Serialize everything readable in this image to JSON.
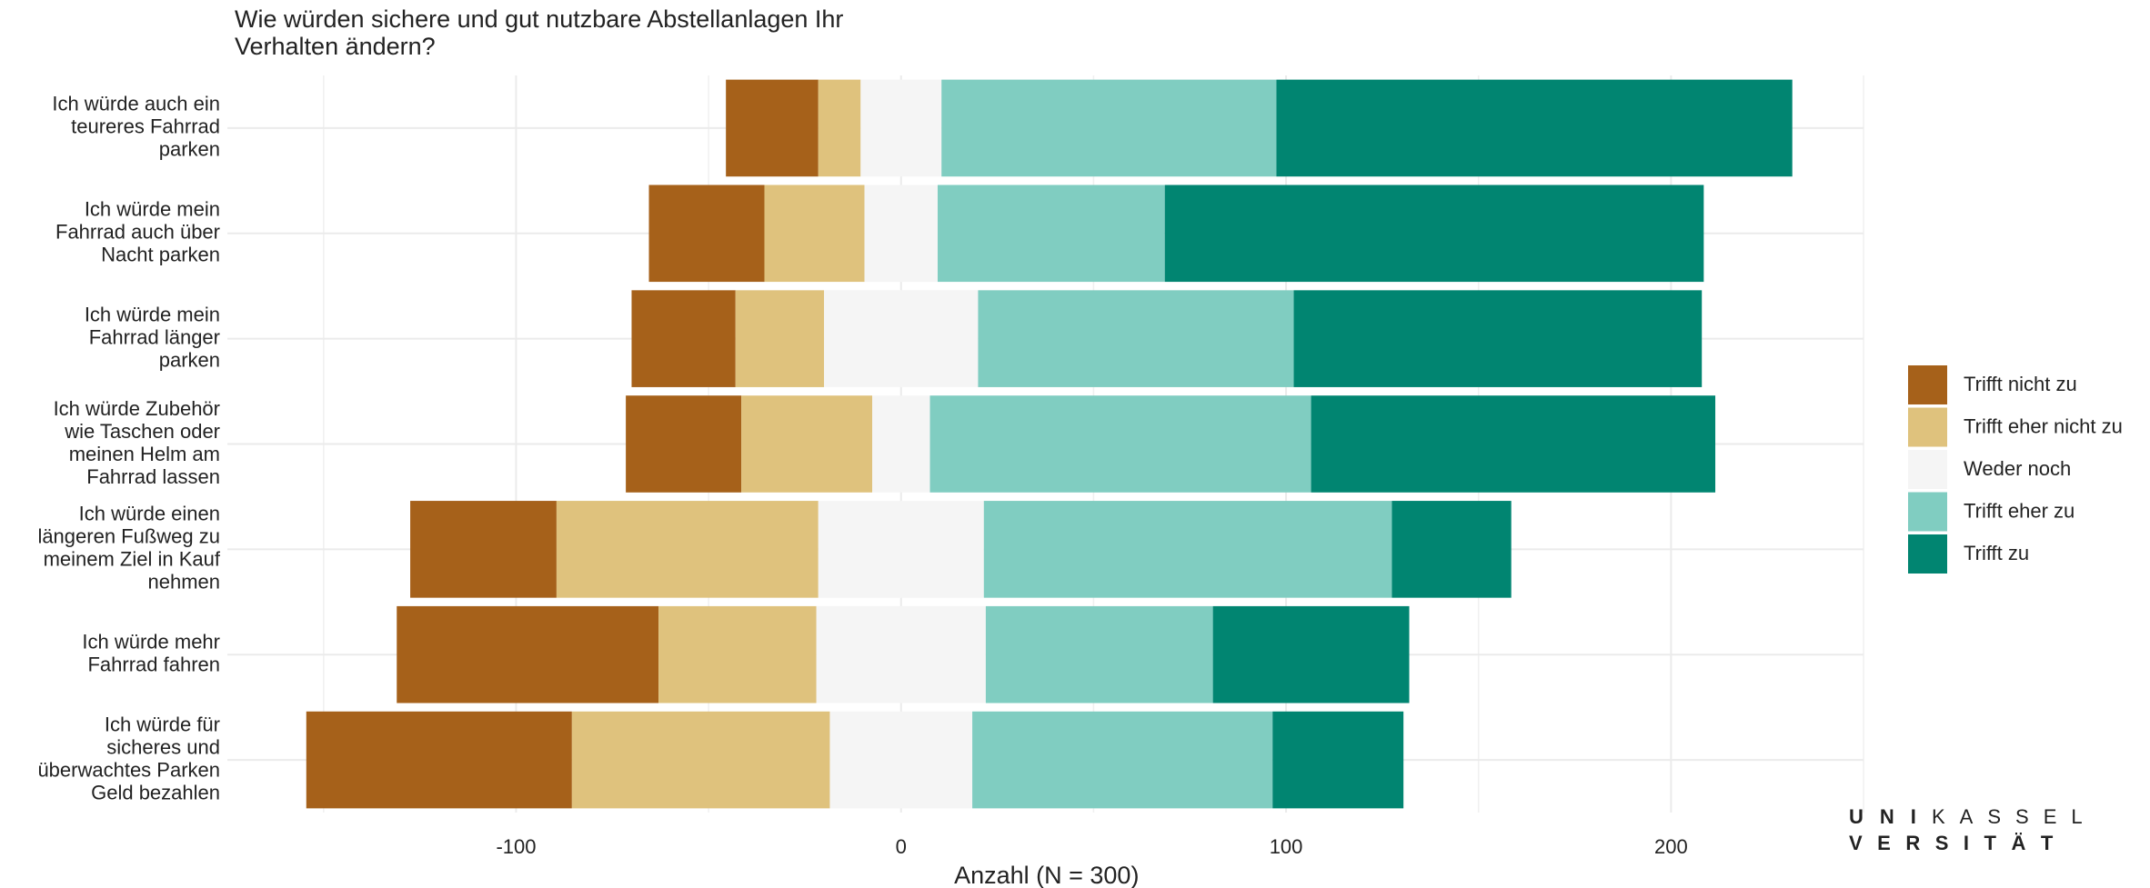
{
  "chart_data": {
    "type": "diverging_bar",
    "title": [
      "Wie würden sichere und gut nutzbare Abstellanlagen Ihr",
      "Verhalten ändern?"
    ],
    "x_label": "Anzahl (N = 300)",
    "categories": [
      [
        "Ich würde auch ein",
        "teureres Fahrrad",
        "parken"
      ],
      [
        "Ich würde mein",
        "Fahrrad auch über",
        "Nacht parken"
      ],
      [
        "Ich würde mein",
        "Fahrrad länger",
        "parken"
      ],
      [
        "Ich würde Zubehör",
        "wie Taschen oder",
        "meinen Helm am",
        "Fahrrad lassen"
      ],
      [
        "Ich würde einen",
        "längeren Fußweg zu",
        "meinem Ziel in Kauf",
        "nehmen"
      ],
      [
        "Ich würde mehr",
        "Fahrrad fahren"
      ],
      [
        "Ich würde für",
        "sicheres und",
        "überwachtes Parken",
        "Geld bezahlen"
      ]
    ],
    "series": [
      {
        "name": "Trifft nicht zu",
        "color": "#a6611a",
        "values": [
          24,
          30,
          27,
          30,
          38,
          68,
          69
        ]
      },
      {
        "name": "Trifft eher nicht zu",
        "color": "#dfc27d",
        "values": [
          11,
          26,
          23,
          34,
          68,
          41,
          67
        ]
      },
      {
        "name": "Weder noch",
        "color": "#f5f5f5",
        "values": [
          21,
          19,
          40,
          15,
          43,
          44,
          37
        ]
      },
      {
        "name": "Trifft eher zu",
        "color": "#80cdc1",
        "values": [
          87,
          59,
          82,
          99,
          106,
          59,
          78
        ]
      },
      {
        "name": "Trifft zu",
        "color": "#018571",
        "values": [
          134,
          140,
          106,
          105,
          31,
          51,
          34
        ]
      }
    ],
    "xlim": [
      -175,
      250
    ],
    "xticks": [
      -100,
      0,
      100,
      200
    ],
    "xticks_minor": [
      -150,
      -50,
      50,
      150,
      250
    ],
    "grid": true,
    "legend_position": "right",
    "logo": {
      "part1": "UNI",
      "part2": "KASSEL",
      "part3": "VERSITÄT"
    }
  }
}
